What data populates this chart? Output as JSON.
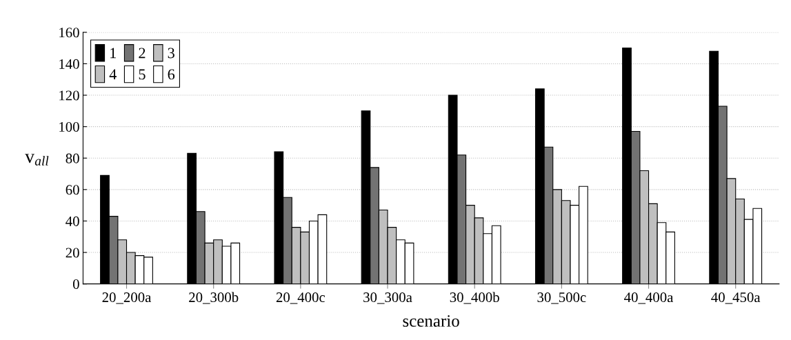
{
  "chart_data": {
    "type": "bar",
    "xlabel": "scenario",
    "ylabel": "v$_{all}$",
    "categories": [
      "20_200a",
      "20_300b",
      "20_400c",
      "30_300a",
      "30_400b",
      "30_500c",
      "40_400a",
      "40_450a"
    ],
    "series": [
      {
        "name": "1",
        "color": "#000000",
        "values": [
          69,
          83,
          84,
          110,
          120,
          124,
          150,
          148
        ]
      },
      {
        "name": "2",
        "color": "#737373",
        "values": [
          43,
          46,
          55,
          74,
          82,
          87,
          97,
          113
        ]
      },
      {
        "name": "3",
        "color": "#bfbfbf",
        "values": [
          28,
          26,
          36,
          47,
          50,
          60,
          72,
          67
        ]
      },
      {
        "name": "4",
        "color": "#bfbfbf",
        "values": [
          20,
          28,
          33,
          36,
          42,
          53,
          51,
          54
        ]
      },
      {
        "name": "5",
        "color": "#ffffff",
        "values": [
          18,
          24,
          40,
          28,
          32,
          50,
          39,
          41
        ]
      },
      {
        "name": "6",
        "color": "#ffffff",
        "values": [
          17,
          26,
          44,
          26,
          37,
          62,
          33,
          48
        ]
      }
    ],
    "ylim": [
      0,
      160
    ],
    "yticks": [
      0,
      20,
      40,
      60,
      80,
      100,
      120,
      140,
      160
    ],
    "grid": "y",
    "legend": "top left"
  }
}
